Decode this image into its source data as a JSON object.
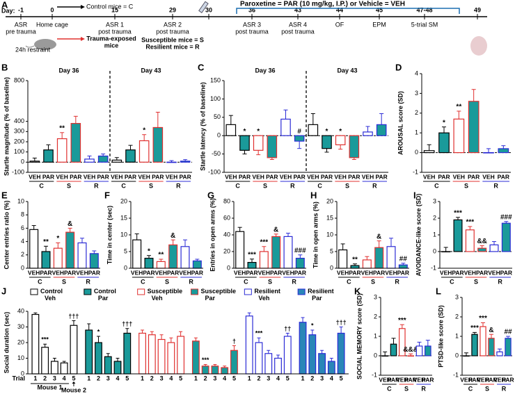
{
  "timeline": {
    "label": "A",
    "day_label": "Day:",
    "days": [
      -1,
      0,
      15,
      29,
      30,
      36,
      43,
      44,
      45,
      "47-48",
      49
    ],
    "notes": [
      [
        "ASR",
        "pre trauma"
      ],
      [],
      [
        "ASR 1",
        "post trauma"
      ],
      [
        "ASR 2",
        "post trauma"
      ],
      [],
      [
        "ASR 3",
        "post trauma"
      ],
      [
        "ASR 4",
        "post trauma"
      ],
      [
        "OF"
      ],
      [
        "EPM"
      ],
      [
        "5-trial SM"
      ],
      []
    ],
    "home_cage": "Home cage",
    "restraint": "24h restraint",
    "control_mice": "Control mice = C",
    "trauma_mice": [
      "Trauma-exposed",
      "mice"
    ],
    "susceptible": "Susceptible mice = S",
    "resilient": "Resilient mice = R",
    "treatment": "Paroxetine = PAR (10 mg/kg, I.P.) or Vehicle = VEH"
  },
  "palette": {
    "fills": [
      "#ffffff",
      "#1a9a9a",
      "#ffffff",
      "#1a9a9a",
      "#ffffff",
      "#1a9a9a"
    ],
    "edges": [
      "#000000",
      "#000000",
      "#e0302f",
      "#e0302f",
      "#2b2bd6",
      "#2b2bd6"
    ],
    "category_colors": [
      "#000000",
      "#1a9a9a",
      "#000000",
      "#1a9a9a",
      "#000000",
      "#1a9a9a"
    ],
    "group_colors": [
      "#000000",
      "#e0302f",
      "#2b2bd6"
    ]
  },
  "chart_data": [
    {
      "type": "bar",
      "label": "B",
      "ylabel": "Startle magnitude (% of baseline)",
      "ylim": [
        -100,
        800
      ],
      "yticks": [
        -100,
        0,
        100,
        200,
        300,
        400,
        800
      ],
      "categories": [
        "VEH",
        "PAR",
        "VEH",
        "PAR",
        "VEH",
        "PAR"
      ],
      "groups": [
        "C",
        "S",
        "R"
      ],
      "facets": [
        {
          "title": "Day 36",
          "values": [
            10,
            120,
            230,
            380,
            30,
            60
          ],
          "errors": [
            30,
            50,
            60,
            70,
            30,
            20
          ],
          "stars": [
            null,
            null,
            "**",
            null,
            null,
            null
          ]
        },
        {
          "title": "Day 43",
          "values": [
            20,
            120,
            210,
            340,
            0,
            10
          ],
          "errors": [
            25,
            45,
            60,
            150,
            15,
            15
          ],
          "stars": [
            null,
            null,
            "*",
            null,
            null,
            null
          ]
        }
      ]
    },
    {
      "type": "bar",
      "label": "C",
      "ylabel": "Startle latency (% of baseline)",
      "ylim": [
        -100,
        150
      ],
      "yticks": [
        -100,
        -50,
        0,
        50,
        100,
        150
      ],
      "categories": [
        "VEH",
        "PAR",
        "VEH",
        "PAR",
        "VEH",
        "PAR"
      ],
      "groups": [
        "C",
        "S",
        "R"
      ],
      "facets": [
        {
          "title": "Day 36",
          "values": [
            30,
            -40,
            -40,
            -60,
            45,
            -15
          ],
          "errors": [
            25,
            10,
            12,
            5,
            25,
            20
          ],
          "stars": [
            null,
            "*",
            "*",
            null,
            null,
            "#"
          ]
        },
        {
          "title": "Day 43",
          "values": [
            30,
            -35,
            -25,
            -60,
            10,
            30
          ],
          "errors": [
            30,
            10,
            12,
            5,
            15,
            30
          ],
          "stars": [
            null,
            "*",
            "*",
            null,
            null,
            null
          ]
        }
      ]
    },
    {
      "type": "bar",
      "label": "D",
      "ylabel": "AROUSAL score (SD)",
      "ylim": [
        -1,
        4
      ],
      "yticks": [
        -1,
        0,
        1,
        2,
        3,
        4
      ],
      "categories": [
        "VEH",
        "PAR",
        "VEH",
        "PAR",
        "VEH",
        "PAR"
      ],
      "groups": [
        "C",
        "S",
        "R"
      ],
      "facets": [
        {
          "values": [
            0.1,
            1.0,
            1.7,
            2.6,
            0.0,
            0.2
          ],
          "errors": [
            0.3,
            0.3,
            0.4,
            0.6,
            0.2,
            0.15
          ],
          "stars": [
            null,
            "*",
            "**",
            null,
            null,
            null
          ]
        }
      ]
    },
    {
      "type": "bar",
      "label": "E",
      "ylabel": "Center entries ratio (%)",
      "ylim": [
        0,
        10
      ],
      "yticks": [
        0,
        2,
        4,
        6,
        8,
        10
      ],
      "categories": [
        "VEH",
        "PAR",
        "VEH",
        "PAR",
        "VEH",
        "PAR"
      ],
      "groups": [
        "C",
        "S",
        "R"
      ],
      "facets": [
        {
          "values": [
            5.8,
            2.5,
            3.0,
            5.4,
            3.8,
            2.2
          ],
          "errors": [
            0.6,
            0.8,
            0.8,
            0.6,
            0.7,
            0.4
          ],
          "stars": [
            null,
            "**",
            "*",
            "&",
            null,
            null
          ]
        }
      ]
    },
    {
      "type": "bar",
      "label": "F",
      "ylabel": "Time in center (sec)",
      "ylim": [
        0,
        20
      ],
      "yticks": [
        0,
        5,
        10,
        15,
        20
      ],
      "categories": [
        "VEH",
        "PAR",
        "VEH",
        "PAR",
        "VEH",
        "PAR"
      ],
      "groups": [
        "C",
        "S",
        "R"
      ],
      "facets": [
        {
          "values": [
            8.5,
            3.0,
            2.0,
            7.0,
            6.5,
            2.2
          ],
          "errors": [
            1.8,
            0.8,
            0.7,
            1.5,
            2.0,
            0.5
          ],
          "stars": [
            null,
            "*",
            "**",
            "&",
            null,
            null
          ]
        }
      ]
    },
    {
      "type": "bar",
      "label": "G",
      "ylabel": "Entries in open arms (%)",
      "ylim": [
        0,
        80
      ],
      "yticks": [
        0,
        20,
        40,
        60,
        80
      ],
      "categories": [
        "VEH",
        "PAR",
        "VEH",
        "PAR",
        "VEH",
        "PAR"
      ],
      "groups": [
        "C",
        "S",
        "R"
      ],
      "facets": [
        {
          "values": [
            44,
            7,
            20,
            38,
            38,
            12
          ],
          "errors": [
            5,
            4,
            6,
            3,
            4,
            4
          ],
          "stars": [
            null,
            "***",
            "***",
            "&",
            null,
            "###"
          ]
        }
      ]
    },
    {
      "type": "bar",
      "label": "H",
      "ylabel": "Time in open arms (%)",
      "ylim": [
        0,
        20
      ],
      "yticks": [
        0,
        5,
        10,
        15,
        20
      ],
      "categories": [
        "VEH",
        "PAR",
        "VEH",
        "PAR",
        "VEH",
        "PAR"
      ],
      "groups": [
        "C",
        "S",
        "R"
      ],
      "facets": [
        {
          "values": [
            5.5,
            0.8,
            2.5,
            6.2,
            6.5,
            1.0
          ],
          "errors": [
            1.8,
            0.5,
            1.0,
            2.0,
            2.5,
            0.5
          ],
          "stars": [
            null,
            "**",
            null,
            "&",
            null,
            "##"
          ]
        }
      ]
    },
    {
      "type": "bar",
      "label": "I",
      "ylabel": "AVOIDANCE-like score (SD)",
      "ylim": [
        -1,
        3
      ],
      "yticks": [
        -1,
        0,
        1,
        2,
        3
      ],
      "categories": [
        "VEH",
        "PAR",
        "VEH",
        "PAR",
        "VEH",
        "PAR"
      ],
      "groups": [
        "C",
        "S",
        "R"
      ],
      "facets": [
        {
          "values": [
            0.0,
            1.9,
            1.3,
            0.2,
            0.4,
            1.7
          ],
          "errors": [
            0.25,
            0.15,
            0.2,
            0.15,
            0.2,
            0.1
          ],
          "stars": [
            null,
            "***",
            "***",
            "&&",
            null,
            "###"
          ]
        }
      ]
    },
    {
      "type": "grouped",
      "label": "J",
      "ylabel": "Social duration (sec)",
      "ylim": [
        0,
        40
      ],
      "yticks": [
        0,
        10,
        20,
        30,
        40
      ],
      "trial_label": "Trial",
      "mouse1": "Mouse 1",
      "mouse2": "Mouse 2",
      "categories": [
        1,
        2,
        3,
        4,
        5
      ],
      "series": [
        {
          "name": "Control Veh",
          "fill": "#ffffff",
          "edge": "#000000",
          "values": [
            38,
            17,
            8,
            7,
            31
          ],
          "errors": [
            1,
            2,
            2,
            1,
            3
          ],
          "stars": [
            null,
            "***",
            null,
            null,
            "†††"
          ]
        },
        {
          "name": "Control Par",
          "fill": "#1a9a9a",
          "edge": "#000000",
          "values": [
            28,
            20,
            11,
            8,
            26
          ],
          "errors": [
            4,
            4,
            2,
            2,
            3
          ],
          "stars": [
            null,
            "*",
            null,
            null,
            "†††"
          ]
        },
        {
          "name": "Susceptible Veh",
          "fill": "#ffffff",
          "edge": "#e0302f",
          "values": [
            26,
            25,
            22,
            20,
            24
          ],
          "errors": [
            2,
            2,
            3,
            3,
            3
          ],
          "stars": [
            null,
            null,
            null,
            null,
            null
          ]
        },
        {
          "name": "Susceptible Par",
          "fill": "#1a9a9a",
          "edge": "#e0302f",
          "values": [
            21,
            5,
            5,
            4,
            15
          ],
          "errors": [
            2,
            1,
            1,
            1,
            3
          ],
          "stars": [
            null,
            "***",
            null,
            null,
            "†"
          ]
        },
        {
          "name": "Resilient Veh",
          "fill": "#ffffff",
          "edge": "#2b2bd6",
          "values": [
            37,
            20,
            13,
            10,
            24
          ],
          "errors": [
            2,
            3,
            2,
            2,
            2
          ],
          "stars": [
            null,
            "***",
            null,
            null,
            "††"
          ]
        },
        {
          "name": "Resilient Par",
          "fill": "#2a86b8",
          "edge": "#2b2bd6",
          "values": [
            33,
            25,
            13,
            8,
            26
          ],
          "errors": [
            3,
            3,
            2,
            2,
            4
          ],
          "stars": [
            null,
            "*",
            null,
            null,
            "†††"
          ]
        }
      ]
    },
    {
      "type": "bar",
      "label": "K",
      "ylabel": "SOCIAL MEMORY score (SD)",
      "ylim": [
        -1,
        3
      ],
      "yticks": [
        -1,
        0,
        1,
        2,
        3
      ],
      "categories": [
        "VEH",
        "PAR",
        "VEH",
        "PAR",
        "VEH",
        "PAR"
      ],
      "groups": [
        "C",
        "S",
        "R"
      ],
      "facets": [
        {
          "values": [
            0.0,
            0.6,
            1.4,
            0.0,
            0.5,
            0.5
          ],
          "errors": [
            0.2,
            0.3,
            0.2,
            0.1,
            0.2,
            0.3
          ],
          "stars": [
            null,
            null,
            "***",
            "&&&",
            null,
            null
          ]
        }
      ]
    },
    {
      "type": "bar",
      "label": "L",
      "ylabel": "PTSD-like score (SD)",
      "ylim": [
        -1,
        3
      ],
      "yticks": [
        -1,
        0,
        1,
        2,
        3
      ],
      "categories": [
        "VEH",
        "PAR",
        "VEH",
        "PAR",
        "VEH",
        "PAR"
      ],
      "groups": [
        "C",
        "S",
        "R"
      ],
      "facets": [
        {
          "values": [
            0.0,
            1.1,
            1.5,
            0.9,
            0.2,
            0.9
          ],
          "errors": [
            0.15,
            0.1,
            0.2,
            0.2,
            0.15,
            0.1
          ],
          "stars": [
            null,
            "***",
            "***",
            "&",
            null,
            "##"
          ]
        }
      ]
    }
  ]
}
